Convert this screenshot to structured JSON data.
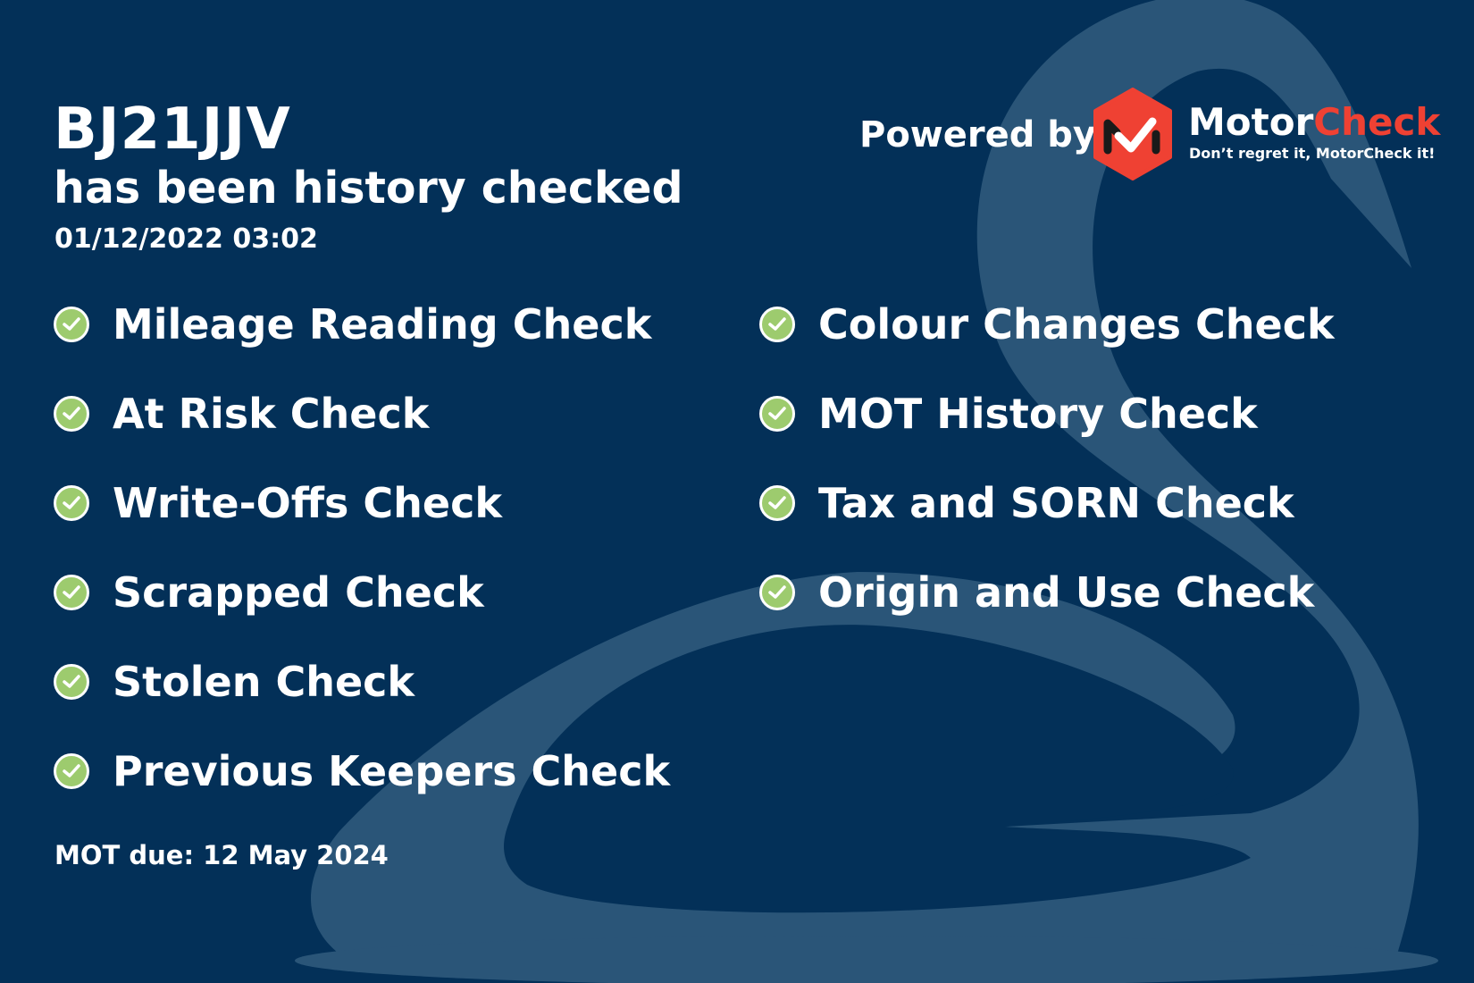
{
  "vehicle": {
    "registration": "BJ21JJV",
    "subtitle": "has been history checked",
    "datetime": "01/12/2022 03:02"
  },
  "checks_left": [
    {
      "label": "Mileage Reading Check",
      "icon": "check-circle-icon"
    },
    {
      "label": "At Risk Check",
      "icon": "check-circle-icon"
    },
    {
      "label": "Write-Offs Check",
      "icon": "check-circle-icon"
    },
    {
      "label": "Scrapped Check",
      "icon": "check-circle-icon"
    },
    {
      "label": "Stolen Check",
      "icon": "check-circle-icon"
    },
    {
      "label": "Previous Keepers Check",
      "icon": "check-circle-icon"
    }
  ],
  "checks_right": [
    {
      "label": "Colour Changes Check",
      "icon": "check-circle-icon"
    },
    {
      "label": "MOT History Check",
      "icon": "check-circle-icon"
    },
    {
      "label": "Tax and SORN Check",
      "icon": "check-circle-icon"
    },
    {
      "label": "Origin and Use Check",
      "icon": "check-circle-icon"
    }
  ],
  "mot_due": "MOT due: 12 May 2024",
  "branding": {
    "powered_by": "Powered by",
    "brand_part1": "Motor",
    "brand_part2": "Check",
    "tagline": "Don’t regret it, MotorCheck it!"
  },
  "colors": {
    "background": "#033058",
    "swan": "#2a5578",
    "check": "#9dcb6e",
    "brand_red": "#ef4133"
  }
}
